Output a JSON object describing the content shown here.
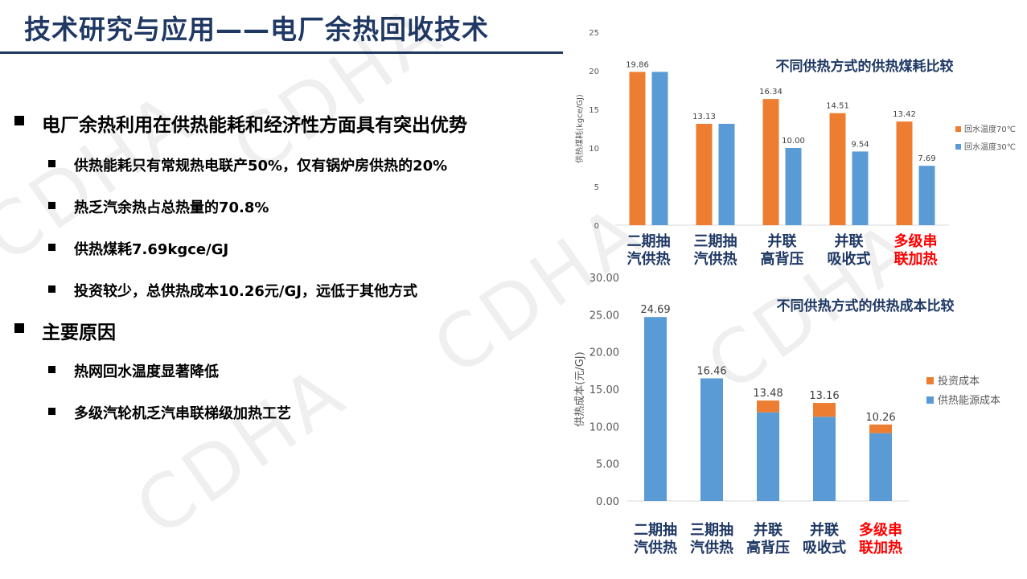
{
  "slide": {
    "title": "技术研究与应用——电厂余热回收技术",
    "watermark": "CDHA"
  },
  "bullets": [
    {
      "text": "电厂余热利用在供热能耗和经济性方面具有突出优势",
      "level": 1
    },
    {
      "text": "供热能耗只有常规热电联产50%，仅有锅炉房供热的20%",
      "level": 2
    },
    {
      "text": "热乏汽余热占总热量的70.8%",
      "level": 2
    },
    {
      "text": "供热煤耗7.69kgce/GJ",
      "level": 2
    },
    {
      "text": "投资较少，总供热成本10.26元/GJ，远低于其他方式",
      "level": 2
    },
    {
      "text": "主要原因",
      "level": 1
    },
    {
      "text": "热网回水温度显著降低",
      "level": 2
    },
    {
      "text": "多级汽轮机乏汽串联梯级加热工艺",
      "level": 2
    }
  ],
  "chart_data": [
    {
      "type": "bar",
      "title": "不同供热方式的供热煤耗比较",
      "ylabel": "供热煤耗(kgce/GJ)",
      "ylim": [
        0,
        25
      ],
      "yticks": [
        "0",
        "5",
        "10",
        "15",
        "20",
        "25"
      ],
      "categories": [
        {
          "line1": "二期抽",
          "line2": "汽供热",
          "highlight": false
        },
        {
          "line1": "三期抽",
          "line2": "汽供热",
          "highlight": false
        },
        {
          "line1": "并联",
          "line2": "高背压",
          "highlight": false
        },
        {
          "line1": "并联",
          "line2": "吸收式",
          "highlight": false
        },
        {
          "line1": "多级串",
          "line2": "联加热",
          "highlight": true
        }
      ],
      "series": [
        {
          "name": "回水温度70℃",
          "color": "#ed7d31",
          "values": [
            19.86,
            13.13,
            16.34,
            14.51,
            13.42
          ],
          "labels": [
            "19.86",
            "13.13",
            "16.34",
            "14.51",
            "13.42"
          ]
        },
        {
          "name": "回水温度30℃",
          "color": "#5b9bd5",
          "values": [
            19.86,
            13.13,
            10.0,
            9.54,
            7.69
          ],
          "labels": [
            "",
            "",
            "10.00",
            "9.54",
            "7.69"
          ]
        }
      ],
      "legend": "right"
    },
    {
      "type": "bar",
      "stacked": true,
      "title": "不同供热方式的供热成本比较",
      "ylabel": "供热成本(元/GJ)",
      "ylim": [
        0,
        30
      ],
      "yticks": [
        "0.00",
        "5.00",
        "10.00",
        "15.00",
        "20.00",
        "25.00",
        "30.00"
      ],
      "categories": [
        {
          "line1": "二期抽",
          "line2": "汽供热",
          "highlight": false
        },
        {
          "line1": "三期抽",
          "line2": "汽供热",
          "highlight": false
        },
        {
          "line1": "并联",
          "line2": "高背压",
          "highlight": false
        },
        {
          "line1": "并联",
          "line2": "吸收式",
          "highlight": false
        },
        {
          "line1": "多级串",
          "line2": "联加热",
          "highlight": true
        }
      ],
      "series": [
        {
          "name": "供热能源成本",
          "color": "#5b9bd5",
          "values": [
            24.69,
            16.46,
            11.9,
            11.3,
            9.1
          ]
        },
        {
          "name": "投资成本",
          "color": "#ed7d31",
          "values": [
            0,
            0,
            1.58,
            1.86,
            1.16
          ]
        }
      ],
      "totals": [
        "24.69",
        "16.46",
        "13.48",
        "13.16",
        "10.26"
      ],
      "legend_order": [
        "投资成本",
        "供热能源成本"
      ],
      "legend": "right"
    }
  ],
  "colors": {
    "title": "#1f3864",
    "highlight": "#ff0000",
    "category": "#1f3864"
  }
}
